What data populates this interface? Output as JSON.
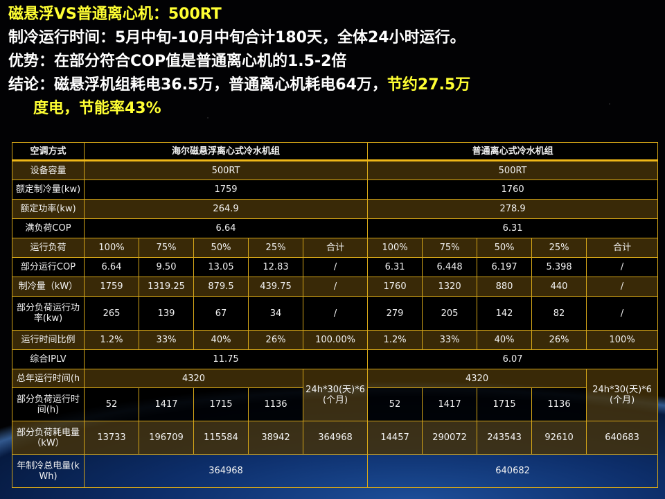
{
  "title": {
    "line1": "磁悬浮VS普通离心机：500RT",
    "line2": "制冷运行时间：5月中旬-10月中旬合计180天，全体24小时运行。",
    "line3": "优势：在部分符合COP值是普通离心机的1.5-2倍",
    "line4_white": "结论：磁悬浮机组耗电36.5万，普通离心机耗电64万，",
    "line4_yellow": "节约27.5万",
    "line5": "度电，节能率43%"
  },
  "colors": {
    "accent_yellow": "#ffff33",
    "grid": "#d8a818",
    "row_band": "#463208"
  },
  "table": {
    "rows": [
      [
        "空调方式",
        "海尔磁悬浮离心式冷水机组",
        "普通离心式冷水机组"
      ],
      [
        "设备容量",
        "500RT",
        "500RT"
      ],
      [
        "额定制冷量(kw)",
        "1759",
        "1760"
      ],
      [
        "额定功率(kw)",
        "264.9",
        "278.9"
      ],
      [
        "满负荷COP",
        "6.64",
        "6.31"
      ],
      [
        "运行负荷",
        "100%",
        "75%",
        "50%",
        "25%",
        "合计",
        "100%",
        "75%",
        "50%",
        "25%",
        "合计"
      ],
      [
        "部分运行COP",
        "6.64",
        "9.50",
        "13.05",
        "12.83",
        "/",
        "6.31",
        "6.448",
        "6.197",
        "5.398",
        "/"
      ],
      [
        "制冷量（kW）",
        "1759",
        "1319.25",
        "879.5",
        "439.75",
        "/",
        "1760",
        "1320",
        "880",
        "440",
        "/"
      ],
      [
        "部分负荷运行功率(kw)",
        "265",
        "139",
        "67",
        "34",
        "/",
        "279",
        "205",
        "142",
        "82",
        "/"
      ],
      [
        "运行时间比例",
        "1.2%",
        "33%",
        "40%",
        "26%",
        "100.00%",
        "1.2%",
        "33%",
        "40%",
        "26%",
        "100%"
      ],
      [
        "综合IPLV",
        "11.75",
        "6.07"
      ],
      [
        "总年运行时间(h",
        "4320",
        "24h*30(天)*6(个月)",
        "4320",
        "24h*30(天)*6(个月)"
      ],
      [
        "部分负荷运行时间(h)",
        "52",
        "1417",
        "1715",
        "1136",
        "52",
        "1417",
        "1715",
        "1136"
      ],
      [
        "部分负荷耗电量（kW）",
        "13733",
        "196709",
        "115584",
        "38942",
        "364968",
        "14457",
        "290072",
        "243543",
        "92610",
        "640683"
      ],
      [
        "年制冷总电量(kWh)",
        "364968",
        "640682"
      ]
    ]
  }
}
